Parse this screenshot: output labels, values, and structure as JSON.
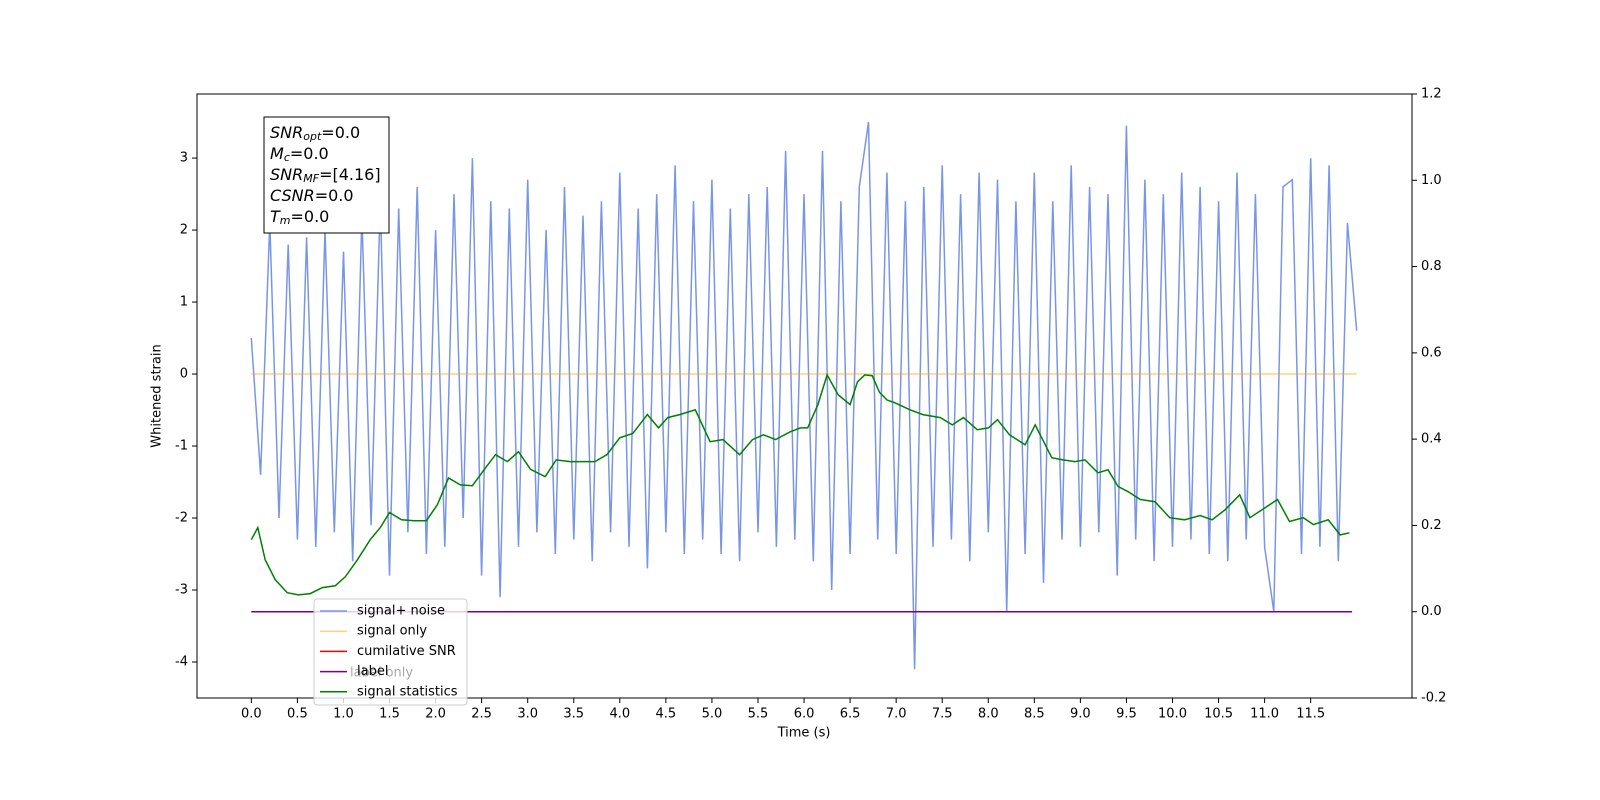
{
  "chart_data": {
    "type": "line",
    "xlabel": "Time (s)",
    "ylabel": "Whitened strain",
    "xlim": [
      -0.59,
      12.6
    ],
    "ylim": [
      -4.5,
      3.89
    ],
    "y2lim": [
      -0.2,
      1.2
    ],
    "xticks": [
      {
        "value": 0,
        "label": "0.0"
      },
      0.5,
      {
        "value": 1,
        "label": "1.0"
      },
      1.5,
      {
        "value": 2,
        "label": "2.0"
      },
      2.5,
      {
        "value": 3,
        "label": "3.0"
      },
      3.5,
      {
        "value": 4,
        "label": "4.0"
      },
      4.5,
      {
        "value": 5,
        "label": "5.0"
      },
      5.5,
      {
        "value": 6,
        "label": "6.0"
      },
      6.5,
      {
        "value": 7,
        "label": "7.0"
      },
      7.5,
      {
        "value": 8,
        "label": "8.0"
      },
      8.5,
      {
        "value": 9,
        "label": "9.0"
      },
      9.5,
      {
        "value": 10,
        "label": "10.0"
      },
      10.5,
      {
        "value": 11,
        "label": "11.0"
      },
      11.5
    ],
    "yticks": [
      -4,
      -3,
      -2,
      -1,
      0,
      1,
      2,
      3
    ],
    "y2ticks": [
      -0.2,
      {
        "value": 0,
        "label": "0.0"
      },
      0.2,
      0.4,
      0.6,
      0.8,
      {
        "value": 1,
        "label": "1.0"
      },
      1.2
    ],
    "annotation": [
      {
        "symbol": "SNR",
        "sub": "opt",
        "text": "=0.0"
      },
      {
        "symbol": "M",
        "sub": "c",
        "text": "=0.0"
      },
      {
        "symbol": "SNR",
        "sub": "MF",
        "text": "=[4.16]"
      },
      {
        "symbol": "CSNR",
        "text": "=0.0"
      },
      {
        "symbol": "T",
        "sub": "m",
        "text": "=0.0"
      }
    ],
    "series": [
      {
        "name": "signal+ noise",
        "color": "#7995e8",
        "x": [
          0,
          0.1,
          0.2,
          0.3,
          0.4,
          0.5,
          0.6,
          0.7,
          0.8,
          0.9,
          1,
          1.1,
          1.2,
          1.3,
          1.4,
          1.5,
          1.6,
          1.7,
          1.8,
          1.9,
          2,
          2.1,
          2.2,
          2.3,
          2.4,
          2.5,
          2.6,
          2.7,
          2.8,
          2.9,
          3,
          3.1,
          3.2,
          3.3,
          3.4,
          3.5,
          3.6,
          3.7,
          3.8,
          3.9,
          4,
          4.1,
          4.2,
          4.3,
          4.4,
          4.5,
          4.6,
          4.7,
          4.8,
          4.9,
          5,
          5.1,
          5.2,
          5.3,
          5.4,
          5.5,
          5.6,
          5.7,
          5.8,
          5.9,
          6,
          6.1,
          6.2,
          6.3,
          6.4,
          6.5,
          6.6,
          6.7,
          6.8,
          6.9,
          7,
          7.1,
          7.2,
          7.3,
          7.4,
          7.5,
          7.6,
          7.7,
          7.8,
          7.9,
          8,
          8.1,
          8.2,
          8.3,
          8.4,
          8.5,
          8.6,
          8.7,
          8.8,
          8.9,
          9,
          9.1,
          9.2,
          9.3,
          9.4,
          9.5,
          9.6,
          9.7,
          9.8,
          9.9,
          10,
          10.1,
          10.2,
          10.3,
          10.4,
          10.5,
          10.6,
          10.7,
          10.8,
          10.9,
          11,
          11.1,
          11.2,
          11.3,
          11.4,
          11.5,
          11.6,
          11.7,
          11.8,
          11.9,
          12
        ],
        "values": [
          0.5,
          -1.4,
          2.1,
          -2.0,
          1.8,
          -2.3,
          1.9,
          -2.4,
          2.0,
          -2.2,
          1.7,
          -2.6,
          2.2,
          -2.1,
          2.4,
          -2.8,
          2.3,
          -2.2,
          2.6,
          -2.5,
          2.0,
          -2.4,
          2.5,
          -2.0,
          3.0,
          -2.8,
          2.4,
          -3.1,
          2.3,
          -2.4,
          2.7,
          -2.2,
          2.0,
          -2.5,
          2.6,
          -2.3,
          2.2,
          -2.6,
          2.4,
          -2.2,
          2.8,
          -2.4,
          2.3,
          -2.7,
          2.5,
          -2.2,
          2.9,
          -2.5,
          2.4,
          -2.3,
          2.7,
          -2.5,
          2.3,
          -2.6,
          2.5,
          -2.2,
          2.6,
          -2.4,
          3.1,
          -2.3,
          2.5,
          -2.6,
          3.1,
          -3.0,
          2.4,
          -2.5,
          2.6,
          3.5,
          -2.3,
          2.8,
          -2.5,
          2.4,
          -4.1,
          2.6,
          -2.4,
          2.9,
          -2.3,
          2.5,
          -2.6,
          2.8,
          -2.2,
          2.7,
          -3.3,
          2.4,
          -2.5,
          2.8,
          -2.9,
          2.4,
          -2.3,
          2.9,
          -2.4,
          2.6,
          -2.2,
          2.5,
          -2.8,
          3.45,
          -2.3,
          2.7,
          -2.6,
          2.5,
          -2.4,
          2.8,
          -2.3,
          2.6,
          -2.5,
          2.4,
          -2.6,
          2.8,
          -2.3,
          2.5,
          -2.4,
          -3.3,
          2.6,
          2.7,
          -2.5,
          3.0,
          -2.4,
          2.9,
          -2.6,
          2.1,
          0.6
        ]
      },
      {
        "name": "signal only",
        "color": "#ffa500",
        "alpha": 0.5,
        "x": [
          0,
          12
        ],
        "values": [
          0,
          0
        ]
      },
      {
        "name": "cumilative SNR",
        "color": "#ff0000",
        "x": [],
        "values": []
      },
      {
        "name": "label",
        "color": "#800080",
        "axis": "y2",
        "x": [
          0,
          11.95
        ],
        "values": [
          0,
          0
        ]
      },
      {
        "name": "label only",
        "color": "#808080",
        "hidden": true,
        "x": [],
        "values": []
      },
      {
        "name": "signal statistics",
        "color": "#008000",
        "axis": "y2",
        "x": [
          0,
          0.07,
          0.15,
          0.26,
          0.39,
          0.51,
          0.64,
          0.77,
          0.91,
          1.02,
          1.15,
          1.29,
          1.4,
          1.5,
          1.63,
          1.77,
          1.9,
          2.02,
          2.14,
          2.27,
          2.4,
          2.53,
          2.65,
          2.78,
          2.9,
          3.03,
          3.19,
          3.31,
          3.46,
          3.6,
          3.73,
          3.86,
          4.0,
          4.14,
          4.3,
          4.42,
          4.52,
          4.65,
          4.82,
          4.98,
          5.12,
          5.3,
          5.44,
          5.56,
          5.69,
          5.85,
          5.96,
          6.04,
          6.15,
          6.25,
          6.37,
          6.5,
          6.58,
          6.66,
          6.74,
          6.82,
          6.9,
          6.99,
          7.15,
          7.29,
          7.48,
          7.61,
          7.73,
          7.88,
          8.0,
          8.1,
          8.23,
          8.4,
          8.51,
          8.69,
          8.81,
          8.94,
          9.05,
          9.19,
          9.3,
          9.41,
          9.52,
          9.65,
          9.81,
          9.97,
          10.13,
          10.3,
          10.43,
          10.57,
          10.73,
          10.84,
          10.97,
          11.14,
          11.27,
          11.42,
          11.53,
          11.69,
          11.82,
          11.92
        ],
        "values": [
          0.167,
          0.195,
          0.12,
          0.074,
          0.044,
          0.039,
          0.042,
          0.056,
          0.06,
          0.081,
          0.12,
          0.167,
          0.195,
          0.23,
          0.213,
          0.211,
          0.211,
          0.248,
          0.31,
          0.294,
          0.292,
          0.33,
          0.364,
          0.348,
          0.371,
          0.33,
          0.313,
          0.352,
          0.348,
          0.348,
          0.348,
          0.364,
          0.403,
          0.413,
          0.457,
          0.426,
          0.45,
          0.457,
          0.468,
          0.394,
          0.399,
          0.364,
          0.399,
          0.41,
          0.399,
          0.417,
          0.426,
          0.426,
          0.48,
          0.549,
          0.503,
          0.48,
          0.533,
          0.549,
          0.547,
          0.508,
          0.491,
          0.484,
          0.468,
          0.457,
          0.45,
          0.433,
          0.45,
          0.422,
          0.426,
          0.445,
          0.41,
          0.387,
          0.433,
          0.357,
          0.352,
          0.348,
          0.352,
          0.322,
          0.329,
          0.29,
          0.278,
          0.26,
          0.255,
          0.218,
          0.213,
          0.223,
          0.213,
          0.236,
          0.271,
          0.218,
          0.236,
          0.26,
          0.209,
          0.218,
          0.202,
          0.213,
          0.178,
          0.183
        ]
      }
    ]
  }
}
